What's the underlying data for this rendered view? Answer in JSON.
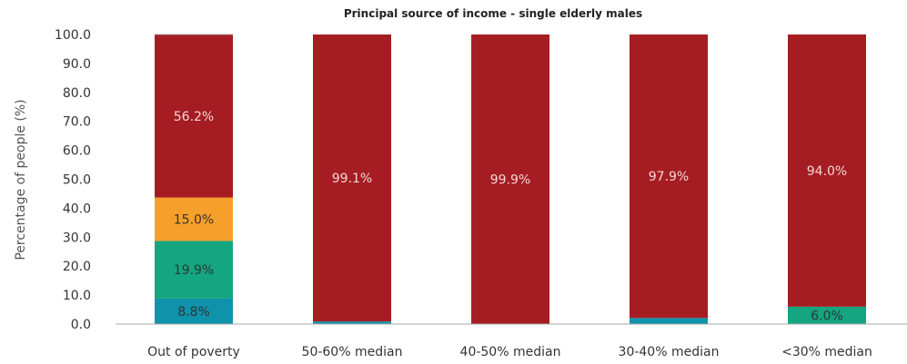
{
  "chart_data": {
    "type": "bar",
    "stacked": true,
    "title": "Principal source of income - single elderly males",
    "xlabel": "",
    "ylabel": "Percentage of people (%)",
    "ylim": [
      0,
      100
    ],
    "yticks": [
      "0.0",
      "10.0",
      "20.0",
      "30.0",
      "40.0",
      "50.0",
      "60.0",
      "70.0",
      "80.0",
      "90.0",
      "100.0"
    ],
    "grid": false,
    "categories": [
      "Out of poverty",
      "50-60% median",
      "40-50% median",
      "30-40% median",
      "<30% median"
    ],
    "series": [
      {
        "color": "#0e93ab",
        "values": [
          8.8,
          0.9,
          0.1,
          2.1,
          0.0
        ],
        "labels": [
          "8.8%",
          "",
          "",
          "",
          ""
        ],
        "label_color": "#333333"
      },
      {
        "color": "#13a680",
        "values": [
          19.9,
          0.0,
          0.0,
          0.0,
          6.0
        ],
        "labels": [
          "19.9%",
          "",
          "",
          "",
          "6.0%"
        ],
        "label_color": "#333333"
      },
      {
        "color": "#f5a02a",
        "values": [
          15.0,
          0.0,
          0.0,
          0.0,
          0.0
        ],
        "labels": [
          "15.0%",
          "",
          "",
          "",
          ""
        ],
        "label_color": "#333333"
      },
      {
        "color": "#a51d23",
        "values": [
          56.2,
          99.1,
          99.9,
          97.9,
          94.0
        ],
        "labels": [
          "56.2%",
          "99.1%",
          "99.9%",
          "97.9%",
          "94.0%"
        ],
        "label_color": "#f3d6d6"
      },
      {
        "color": "#7f7f7f",
        "values": [
          0.2,
          0.0,
          0.0,
          0.0,
          0.0
        ],
        "labels": [
          "",
          "",
          "",
          "",
          ""
        ],
        "label_color": "#333333"
      }
    ]
  }
}
